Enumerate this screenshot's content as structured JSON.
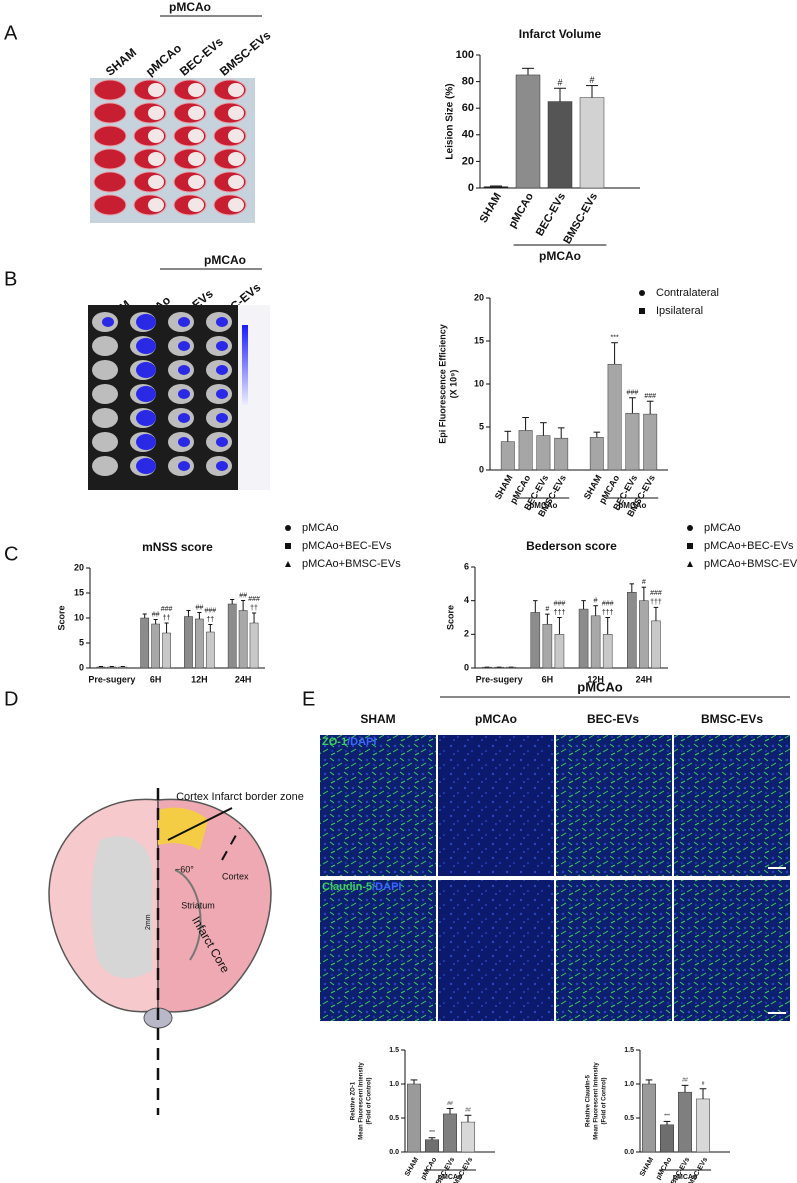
{
  "figure": {
    "labels": [
      "A",
      "B",
      "C",
      "D",
      "E"
    ],
    "A": {
      "group": "pMCAo",
      "lanes": [
        "SHAM",
        "pMCAo",
        "BEC-EVs",
        "BMSC-EVs"
      ]
    },
    "B": {
      "group": "pMCAo",
      "lanes": [
        "SHAM",
        "pMCAo",
        "BEC-EVs",
        "BMSC-EVs"
      ]
    },
    "D": {
      "texts": [
        "Cortex Infarct border zone",
        "~60°",
        "Cortex",
        "Striatum",
        "2mm",
        "Infarct Core"
      ]
    },
    "E": {
      "group": "pMCAo",
      "columns": [
        "SHAM",
        "pMCAo",
        "BEC-EVs",
        "BMSC-EVs"
      ],
      "rows": [
        [
          "ZO-1",
          "/DAPI"
        ],
        [
          "Claudin-5",
          "/DAPI"
        ]
      ]
    }
  },
  "chart_data": [
    {
      "type": "bar",
      "title": "Infarct Volume",
      "ylabel": [
        "Leision Size (%)"
      ],
      "categories": [
        "SHAM",
        "pMCAo",
        "BEC-EVs",
        "BMSC-EVs"
      ],
      "values": [
        1,
        85,
        65,
        68
      ],
      "errors": [
        0.5,
        5,
        10,
        9
      ],
      "annotations": [
        null,
        null,
        "#",
        "#"
      ],
      "colors": [
        "#111111",
        "#8c8c8c",
        "#555555",
        "#d2d2d2"
      ],
      "group_label": "pMCAo",
      "ylim": [
        0,
        100
      ],
      "yticks": [
        0,
        20,
        40,
        60,
        80,
        100
      ]
    },
    {
      "type": "bar",
      "ylabel": [
        "Epi Fluorescence Efficiency",
        "(X 10⁹)"
      ],
      "categories": [
        "SHAM",
        "pMCAo",
        "BEC-EVs",
        "BMSC-EVs"
      ],
      "group_by": "series",
      "legend": true,
      "series": [
        {
          "name": "Contralateral",
          "marker": "circle",
          "color": "#a6a6a6",
          "values": [
            3.3,
            4.6,
            4.0,
            3.7
          ],
          "errors": [
            1.2,
            1.5,
            1.5,
            1.2
          ],
          "annotations": [
            null,
            null,
            null,
            null
          ]
        },
        {
          "name": "Ipsilateral",
          "marker": "square",
          "color": "#a6a6a6",
          "values": [
            3.8,
            12.3,
            6.6,
            6.5
          ],
          "errors": [
            0.6,
            2.5,
            1.8,
            1.5
          ],
          "annotations": [
            null,
            "***",
            "###",
            "###"
          ]
        }
      ],
      "group_label": "pMCAo",
      "ylim": [
        0,
        20
      ],
      "yticks": [
        0,
        5,
        10,
        15,
        20
      ]
    },
    {
      "type": "bar",
      "title": "mNSS score",
      "ylabel": [
        "Score"
      ],
      "legend": true,
      "categories": [
        "Pre-sugery",
        "6H",
        "12H",
        "24H"
      ],
      "series": [
        {
          "name": "pMCAo",
          "marker": "circle",
          "color": "#8c8c8c",
          "values": [
            0.2,
            10,
            10.3,
            12.8
          ],
          "errors": [
            0.1,
            0.8,
            1.2,
            0.9
          ],
          "annotations": [
            null,
            null,
            null,
            null
          ]
        },
        {
          "name": "pMCAo+BEC-EVs",
          "marker": "square",
          "color": "#a8a8a8",
          "values": [
            0.2,
            8.8,
            9.8,
            11.5
          ],
          "errors": [
            0.1,
            0.9,
            1.3,
            2.0
          ],
          "annotations": [
            null,
            "##",
            "##",
            "##"
          ]
        },
        {
          "name": "pMCAo+BMSC-EVs",
          "marker": "triangle",
          "color": "#c8c8c8",
          "values": [
            0.2,
            7,
            7.2,
            9
          ],
          "errors": [
            0.1,
            2.0,
            1.5,
            2.0
          ],
          "annotations": [
            null,
            [
              "###",
              "††"
            ],
            [
              "###",
              "††"
            ],
            [
              "###",
              "††"
            ]
          ]
        }
      ],
      "ylim": [
        0,
        20
      ],
      "yticks": [
        0,
        5,
        10,
        15,
        20
      ]
    },
    {
      "type": "bar",
      "title": "Bederson score",
      "ylabel": [
        "Score"
      ],
      "legend": true,
      "categories": [
        "Pre-sugery",
        "6H",
        "12H",
        "24H"
      ],
      "series": [
        {
          "name": "pMCAo",
          "marker": "circle",
          "color": "#8c8c8c",
          "values": [
            0.05,
            3.3,
            3.5,
            4.5
          ],
          "errors": [
            0,
            0.7,
            0.5,
            0.5
          ],
          "annotations": [
            null,
            null,
            null,
            null
          ]
        },
        {
          "name": "pMCAo+BEC-EVs",
          "marker": "square",
          "color": "#a8a8a8",
          "values": [
            0.05,
            2.6,
            3.1,
            4.0
          ],
          "errors": [
            0,
            0.6,
            0.6,
            0.8
          ],
          "annotations": [
            null,
            "#",
            "#",
            "#"
          ]
        },
        {
          "name": "pMCAo+BMSC-EVs",
          "marker": "triangle",
          "color": "#c8c8c8",
          "values": [
            0.05,
            2.0,
            2.0,
            2.8
          ],
          "errors": [
            0,
            1.0,
            1.0,
            0.8
          ],
          "annotations": [
            null,
            [
              "###",
              "†††"
            ],
            [
              "###",
              "†††"
            ],
            [
              "###",
              "†††"
            ]
          ]
        }
      ],
      "ylim": [
        0,
        6
      ],
      "yticks": [
        0,
        2,
        4,
        6
      ]
    },
    {
      "type": "bar",
      "ylabel": [
        "Relative ZO-1",
        "Mean Fluorescent Intensity",
        "(Fold of Control)"
      ],
      "categories": [
        "SHAM",
        "pMCAo",
        "BEC-EVs",
        "BMSC-EVs"
      ],
      "values": [
        1.0,
        0.18,
        0.56,
        0.44
      ],
      "errors": [
        0.06,
        0.03,
        0.08,
        0.1
      ],
      "annotations": [
        null,
        "***",
        "##",
        "##"
      ],
      "colors": [
        "#9a9a9a",
        "#6e6e6e",
        "#7f7f7f",
        "#d8d8d8"
      ],
      "group_label": "pMCAo",
      "ylim": [
        0,
        1.5
      ],
      "yticks": [
        {
          "value": 0,
          "label": "0.0"
        },
        0.5,
        {
          "value": 1,
          "label": "1.0"
        },
        1.5
      ]
    },
    {
      "type": "bar",
      "ylabel": [
        "Relative Claudin-5",
        "Mean Fluorescent Intensity",
        "(Fold of Control)"
      ],
      "categories": [
        "SHAM",
        "pMCAo",
        "BEC-EVs",
        "BMSC-EVs"
      ],
      "values": [
        1.0,
        0.4,
        0.88,
        0.78
      ],
      "errors": [
        0.06,
        0.05,
        0.1,
        0.15
      ],
      "annotations": [
        null,
        "***",
        "##",
        "#"
      ],
      "colors": [
        "#9a9a9a",
        "#6e6e6e",
        "#7f7f7f",
        "#d8d8d8"
      ],
      "group_label": "pMCAo",
      "ylim": [
        0,
        1.5
      ],
      "yticks": [
        {
          "value": 0,
          "label": "0.0"
        },
        0.5,
        {
          "value": 1,
          "label": "1.0"
        },
        1.5
      ]
    }
  ]
}
